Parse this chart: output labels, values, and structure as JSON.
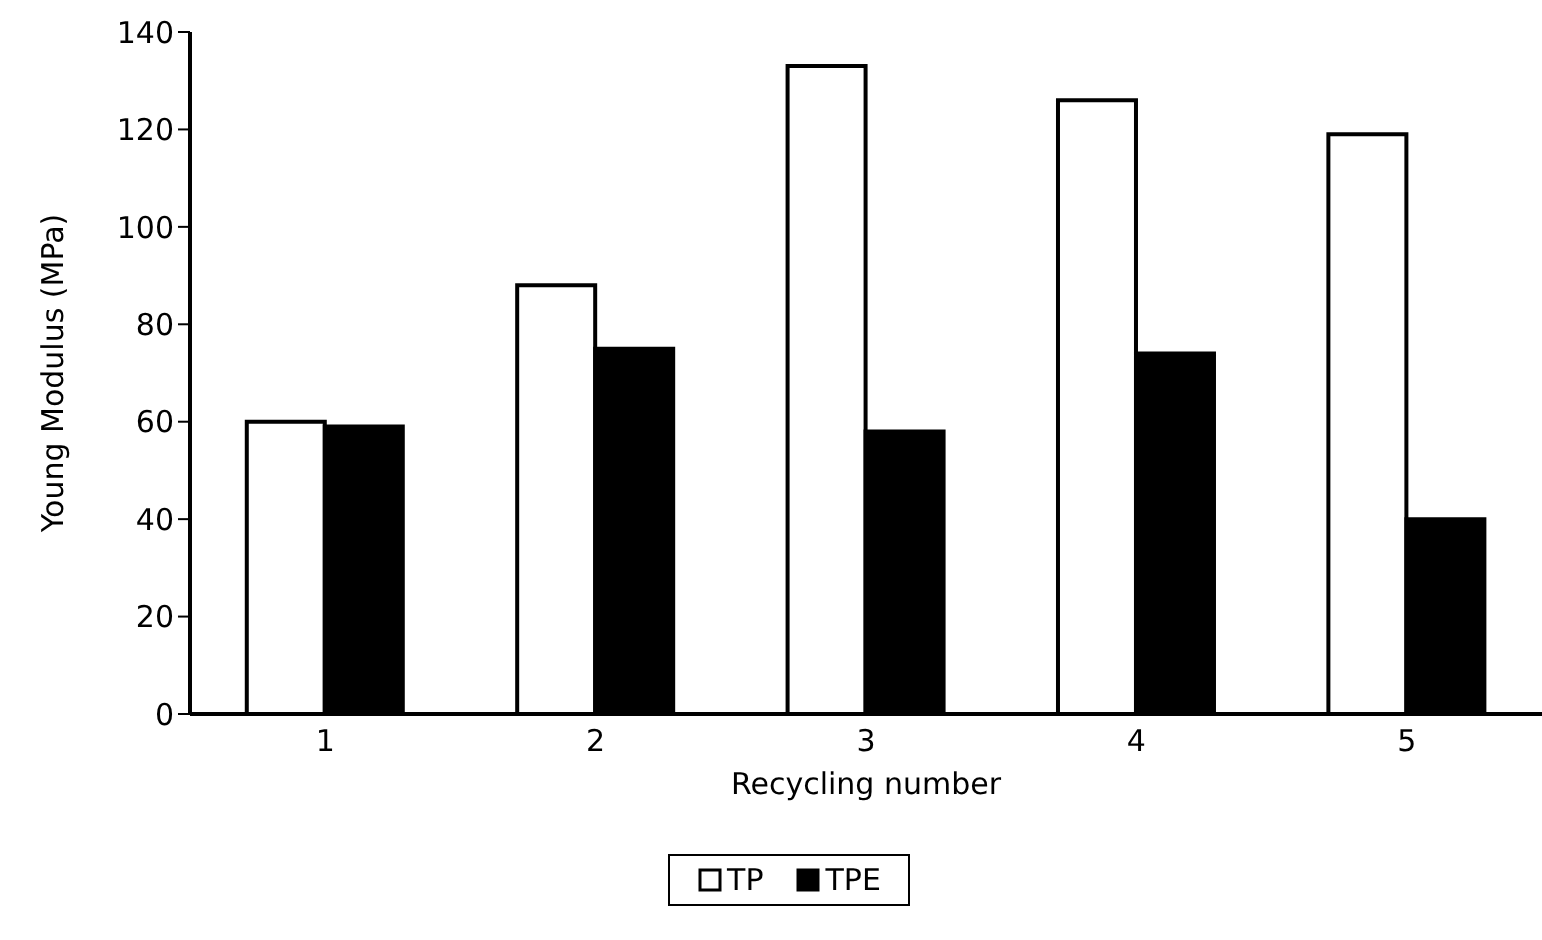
{
  "chart_data": {
    "type": "bar",
    "categories": [
      "1",
      "2",
      "3",
      "4",
      "5"
    ],
    "xlabel": "Recycling number",
    "ylabel": "Young Modulus (MPa)",
    "ylim": [
      0,
      140
    ],
    "yticks": [
      0,
      20,
      40,
      60,
      80,
      100,
      120,
      140
    ],
    "grid": false,
    "legend": "bottom",
    "series": [
      {
        "name": "TP",
        "color": "#ffffff",
        "values": [
          60,
          88,
          133,
          126,
          119
        ]
      },
      {
        "name": "TPE",
        "color": "#000000",
        "values": [
          59,
          75,
          58,
          74,
          40
        ]
      }
    ]
  }
}
